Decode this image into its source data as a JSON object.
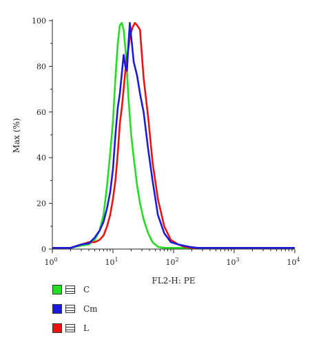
{
  "chart_data": {
    "type": "line",
    "xlabel": "FL2-H: PE",
    "ylabel": "Max (%)",
    "xscale": "log",
    "xlim": [
      1,
      10000
    ],
    "ylim": [
      0,
      100
    ],
    "x_ticks": [
      {
        "value": 1,
        "base": "10",
        "exp": "0"
      },
      {
        "value": 10,
        "base": "10",
        "exp": "1"
      },
      {
        "value": 100,
        "base": "10",
        "exp": "2"
      },
      {
        "value": 1000,
        "base": "10",
        "exp": "3"
      },
      {
        "value": 10000,
        "base": "10",
        "exp": "4"
      }
    ],
    "y_ticks": [
      0,
      20,
      40,
      60,
      80,
      100
    ],
    "legend_position": "bottom-left",
    "series": [
      {
        "name": "C",
        "color": "#22dd22",
        "points": [
          [
            1.0,
            0.5
          ],
          [
            2.0,
            0.5
          ],
          [
            3.0,
            1.5
          ],
          [
            4.0,
            2
          ],
          [
            5.0,
            4
          ],
          [
            6.0,
            8
          ],
          [
            7.0,
            15
          ],
          [
            8.0,
            28
          ],
          [
            9.0,
            42
          ],
          [
            10.0,
            56
          ],
          [
            11.0,
            75
          ],
          [
            12.0,
            90
          ],
          [
            13.0,
            98
          ],
          [
            14.0,
            99
          ],
          [
            15.0,
            96
          ],
          [
            16.0,
            88
          ],
          [
            17.0,
            78
          ],
          [
            18.0,
            66
          ],
          [
            20.0,
            50
          ],
          [
            22.0,
            40
          ],
          [
            25.0,
            28
          ],
          [
            28.0,
            20
          ],
          [
            32.0,
            13
          ],
          [
            38.0,
            7
          ],
          [
            45.0,
            3
          ],
          [
            55.0,
            1
          ],
          [
            70.0,
            0.5
          ],
          [
            200,
            0.5
          ],
          [
            10000,
            0.5
          ]
        ]
      },
      {
        "name": "Cm",
        "color": "#1a1add",
        "points": [
          [
            1.0,
            0.5
          ],
          [
            2.0,
            0.5
          ],
          [
            3.0,
            2
          ],
          [
            4.0,
            2.5
          ],
          [
            5.0,
            5
          ],
          [
            6.0,
            8
          ],
          [
            7.0,
            12
          ],
          [
            8.0,
            18
          ],
          [
            9.0,
            25
          ],
          [
            10.0,
            35
          ],
          [
            11.0,
            50
          ],
          [
            12.0,
            62
          ],
          [
            13.0,
            68
          ],
          [
            14.0,
            77
          ],
          [
            15.0,
            85
          ],
          [
            16.0,
            80
          ],
          [
            17.0,
            78
          ],
          [
            18.0,
            90
          ],
          [
            19.0,
            99
          ],
          [
            20.0,
            93
          ],
          [
            22.0,
            82
          ],
          [
            25.0,
            76
          ],
          [
            28.0,
            68
          ],
          [
            32.0,
            60
          ],
          [
            38.0,
            44
          ],
          [
            45.0,
            30
          ],
          [
            55.0,
            15
          ],
          [
            70.0,
            7
          ],
          [
            90.0,
            3
          ],
          [
            120.0,
            2
          ],
          [
            180.0,
            1
          ],
          [
            250.0,
            0.5
          ],
          [
            10000,
            0.5
          ]
        ]
      },
      {
        "name": "L",
        "color": "#ee1111",
        "points": [
          [
            1.0,
            0.5
          ],
          [
            2.0,
            0.5
          ],
          [
            3.0,
            2
          ],
          [
            4.0,
            3
          ],
          [
            5.0,
            3
          ],
          [
            6.0,
            4
          ],
          [
            7.0,
            6
          ],
          [
            8.0,
            10
          ],
          [
            9.0,
            15
          ],
          [
            10.0,
            22
          ],
          [
            11.0,
            30
          ],
          [
            12.0,
            42
          ],
          [
            13.0,
            55
          ],
          [
            14.0,
            62
          ],
          [
            15.0,
            70
          ],
          [
            16.0,
            78
          ],
          [
            17.0,
            84
          ],
          [
            18.0,
            88
          ],
          [
            19.0,
            93
          ],
          [
            20.0,
            95
          ],
          [
            21.0,
            97
          ],
          [
            23.0,
            99
          ],
          [
            25.0,
            98
          ],
          [
            28.0,
            96
          ],
          [
            30.0,
            85
          ],
          [
            32.0,
            75
          ],
          [
            38.0,
            58
          ],
          [
            45.0,
            38
          ],
          [
            55.0,
            22
          ],
          [
            70.0,
            10
          ],
          [
            90.0,
            4
          ],
          [
            120.0,
            2
          ],
          [
            150.0,
            1
          ],
          [
            200.0,
            0.5
          ],
          [
            10000,
            0.5
          ]
        ]
      }
    ]
  }
}
